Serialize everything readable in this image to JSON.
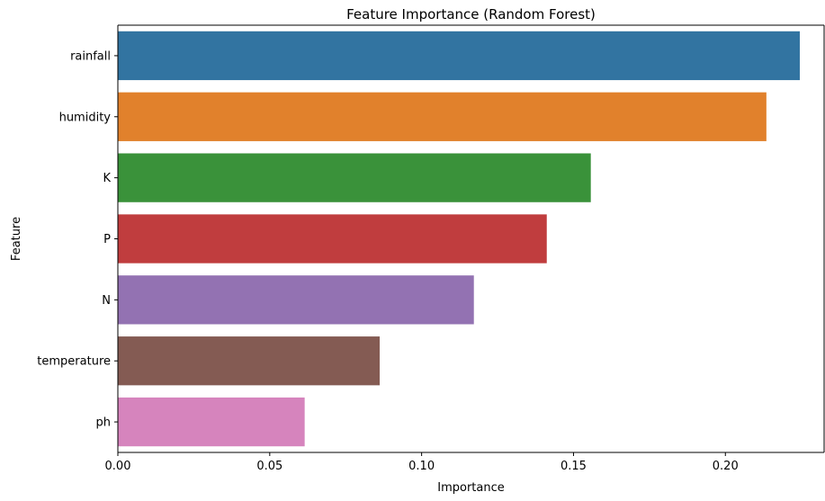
{
  "chart_data": {
    "type": "bar",
    "orientation": "horizontal",
    "title": "Feature Importance (Random Forest)",
    "xlabel": "Importance",
    "ylabel": "Feature",
    "categories": [
      "rainfall",
      "humidity",
      "K",
      "P",
      "N",
      "temperature",
      "ph"
    ],
    "values": [
      0.2245,
      0.2135,
      0.1557,
      0.1412,
      0.1172,
      0.0862,
      0.0615
    ],
    "colors": [
      "#3274a1",
      "#e1812c",
      "#3a923a",
      "#c03d3e",
      "#9372b2",
      "#845b53",
      "#d684bd"
    ],
    "xlim": [
      0,
      0.2325
    ],
    "xticks": [
      0.0,
      0.05,
      0.1,
      0.15,
      0.2
    ],
    "xtick_labels": [
      "0.00",
      "0.05",
      "0.10",
      "0.15",
      "0.20"
    ],
    "grid": false,
    "legend": false
  }
}
